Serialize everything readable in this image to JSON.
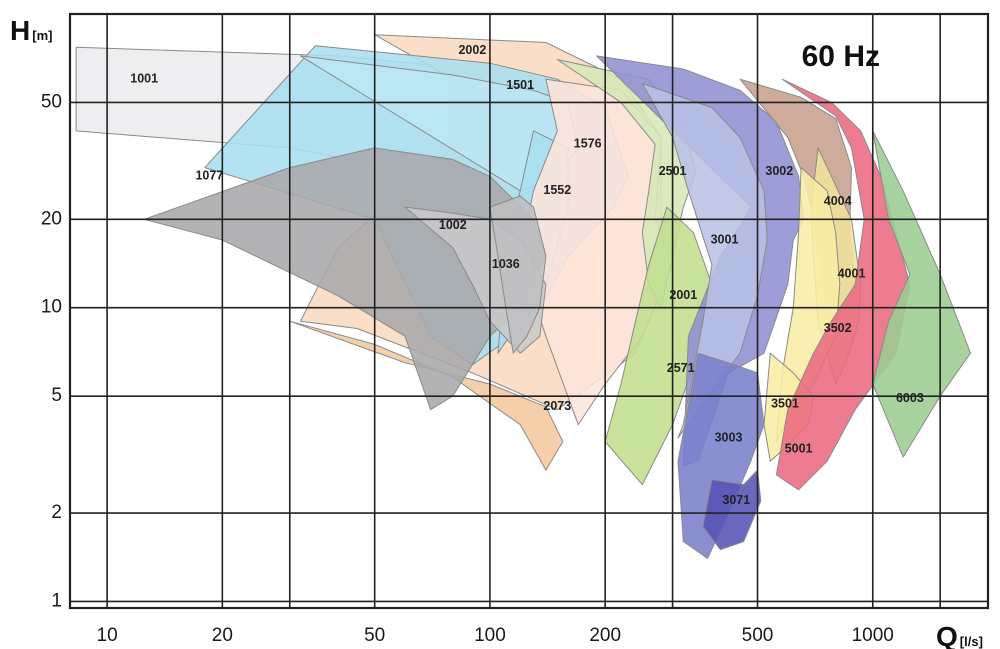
{
  "chart_data": {
    "type": "area",
    "title": "60 Hz",
    "xlabel": "Q",
    "xunit": "[l/s]",
    "ylabel": "H",
    "yunit": "[m]",
    "xscale": "log",
    "yscale": "log",
    "xlim": [
      8,
      2000
    ],
    "ylim": [
      0.95,
      100
    ],
    "xticks": [
      10,
      20,
      50,
      100,
      200,
      500,
      1000
    ],
    "yticks": [
      1,
      2,
      5,
      10,
      20,
      50
    ],
    "x_gridlines": [
      10,
      20,
      30,
      50,
      100,
      200,
      300,
      500,
      1000,
      1500
    ],
    "y_gridlines": [
      1,
      2,
      5,
      10,
      20,
      50
    ],
    "grid": true,
    "regions": [
      {
        "name": "1001",
        "color": "#ececef",
        "label_at": [
          12.5,
          60
        ],
        "polygon": [
          [
            8.3,
            77
          ],
          [
            40,
            72
          ],
          [
            90,
            65
          ],
          [
            140,
            37
          ],
          [
            120,
            30
          ],
          [
            85,
            22
          ],
          [
            55,
            30
          ],
          [
            30,
            35
          ],
          [
            8.3,
            40
          ]
        ]
      },
      {
        "name": "2002",
        "color": "#fad9bf",
        "label_at": [
          90,
          75
        ],
        "polygon": [
          [
            50,
            85
          ],
          [
            140,
            80
          ],
          [
            220,
            60
          ],
          [
            280,
            38
          ],
          [
            280,
            20
          ],
          [
            300,
            15
          ],
          [
            240,
            7
          ],
          [
            150,
            4.5
          ],
          [
            90,
            6
          ],
          [
            45,
            8.5
          ],
          [
            32,
            9
          ],
          [
            40,
            16
          ],
          [
            80,
            35
          ],
          [
            80,
            60
          ]
        ]
      },
      {
        "name": "2073",
        "color": "#f3c89e",
        "label_at": [
          150,
          4.6
        ],
        "polygon": [
          [
            30,
            9
          ],
          [
            60,
            6.5
          ],
          [
            100,
            5.5
          ],
          [
            140,
            4.6
          ],
          [
            155,
            3.5
          ],
          [
            140,
            2.8
          ],
          [
            120,
            4
          ],
          [
            80,
            5.8
          ],
          [
            50,
            7.5
          ]
        ]
      },
      {
        "name": "1576",
        "color": "#a8dff0",
        "label_at": [
          180,
          36
        ],
        "polygon": [
          [
            35,
            78
          ],
          [
            100,
            68
          ],
          [
            150,
            60
          ],
          [
            200,
            48
          ],
          [
            230,
            28
          ],
          [
            210,
            22
          ],
          [
            160,
            15
          ],
          [
            130,
            9
          ],
          [
            90,
            6.4
          ],
          [
            70,
            8
          ],
          [
            50,
            20
          ],
          [
            18,
            30
          ]
        ]
      },
      {
        "name": "1501",
        "color": "#bce6f3",
        "label_at": [
          120,
          57
        ],
        "polygon": [
          [
            32,
            72
          ],
          [
            80,
            62
          ],
          [
            130,
            55
          ],
          [
            160,
            50
          ],
          [
            170,
            35
          ],
          [
            150,
            28
          ],
          [
            120,
            25
          ]
        ]
      },
      {
        "name": "1552",
        "color": "#a8dff0",
        "label_at": [
          150,
          25
        ],
        "polygon": [
          [
            130,
            40
          ],
          [
            160,
            35
          ],
          [
            160,
            22
          ],
          [
            140,
            12
          ],
          [
            120,
            9
          ],
          [
            105,
            7
          ],
          [
            110,
            15
          ],
          [
            120,
            25
          ]
        ]
      },
      {
        "name": "2001",
        "color": "#fde5db",
        "label_at": [
          320,
          11
        ],
        "polygon": [
          [
            140,
            60
          ],
          [
            220,
            55
          ],
          [
            280,
            38
          ],
          [
            270,
            20
          ],
          [
            300,
            14
          ],
          [
            250,
            8
          ],
          [
            200,
            5.5
          ],
          [
            170,
            4
          ],
          [
            140,
            8
          ],
          [
            120,
            15
          ],
          [
            130,
            25
          ],
          [
            150,
            40
          ]
        ]
      },
      {
        "name": "2501",
        "color": "#d6e8b7",
        "label_at": [
          300,
          29
        ],
        "polygon": [
          [
            150,
            70
          ],
          [
            260,
            60
          ],
          [
            320,
            42
          ],
          [
            345,
            29
          ],
          [
            320,
            22
          ],
          [
            300,
            15
          ],
          [
            280,
            10
          ],
          [
            260,
            12
          ],
          [
            250,
            18
          ],
          [
            260,
            25
          ],
          [
            270,
            36
          ],
          [
            220,
            50
          ]
        ]
      },
      {
        "name": "2571",
        "color": "#c2df8f",
        "label_at": [
          315,
          6.2
        ],
        "polygon": [
          [
            290,
            22
          ],
          [
            340,
            18
          ],
          [
            380,
            12
          ],
          [
            350,
            7
          ],
          [
            300,
            4
          ],
          [
            250,
            2.5
          ],
          [
            200,
            3.5
          ],
          [
            220,
            5.5
          ],
          [
            240,
            9
          ],
          [
            260,
            14
          ]
        ]
      },
      {
        "name": "3002",
        "color": "#8f8fd3",
        "label_at": [
          570,
          29
        ],
        "polygon": [
          [
            190,
            72
          ],
          [
            320,
            65
          ],
          [
            450,
            55
          ],
          [
            560,
            43
          ],
          [
            640,
            28
          ],
          [
            660,
            20
          ],
          [
            620,
            17
          ],
          [
            600,
            12
          ],
          [
            520,
            7
          ],
          [
            420,
            6
          ],
          [
            350,
            3
          ],
          [
            320,
            2.9
          ],
          [
            330,
            8
          ],
          [
            400,
            15
          ],
          [
            450,
            19
          ],
          [
            480,
            22
          ]
        ]
      },
      {
        "name": "3001",
        "color": "#b9c2e6",
        "label_at": [
          410,
          17
        ],
        "polygon": [
          [
            250,
            58
          ],
          [
            380,
            48
          ],
          [
            450,
            38
          ],
          [
            520,
            25
          ],
          [
            530,
            17
          ],
          [
            500,
            11
          ],
          [
            450,
            7
          ],
          [
            400,
            5.7
          ],
          [
            350,
            4.5
          ],
          [
            310,
            3.6
          ],
          [
            320,
            4
          ],
          [
            360,
            9
          ],
          [
            380,
            14
          ],
          [
            330,
            25
          ],
          [
            300,
            38
          ]
        ]
      },
      {
        "name": "3003",
        "color": "#7a7fcc",
        "label_at": [
          420,
          3.6
        ],
        "polygon": [
          [
            350,
            7
          ],
          [
            420,
            6.5
          ],
          [
            500,
            6
          ],
          [
            520,
            4
          ],
          [
            480,
            3
          ],
          [
            420,
            2
          ],
          [
            370,
            1.4
          ],
          [
            320,
            1.6
          ],
          [
            310,
            3
          ]
        ]
      },
      {
        "name": "3071",
        "color": "#5553b5",
        "label_at": [
          440,
          2.2
        ],
        "polygon": [
          [
            380,
            2.6
          ],
          [
            460,
            2.5
          ],
          [
            500,
            2.8
          ],
          [
            510,
            2.2
          ],
          [
            460,
            1.6
          ],
          [
            400,
            1.5
          ],
          [
            360,
            1.8
          ]
        ]
      },
      {
        "name": "4004",
        "color": "#c89f8e",
        "label_at": [
          810,
          23
        ],
        "polygon": [
          [
            450,
            60
          ],
          [
            650,
            52
          ],
          [
            800,
            44
          ],
          [
            880,
            30
          ],
          [
            870,
            18
          ],
          [
            920,
            10
          ],
          [
            860,
            8
          ],
          [
            760,
            10
          ],
          [
            720,
            15
          ],
          [
            700,
            20
          ],
          [
            660,
            28
          ],
          [
            600,
            38
          ]
        ]
      },
      {
        "name": "4001",
        "color": "#f0e29c",
        "label_at": [
          880,
          13
        ],
        "polygon": [
          [
            720,
            35
          ],
          [
            880,
            20
          ],
          [
            930,
            12
          ],
          [
            920,
            9
          ],
          [
            850,
            6.5
          ],
          [
            800,
            5.5
          ],
          [
            720,
            9
          ],
          [
            700,
            15
          ],
          [
            690,
            22
          ]
        ]
      },
      {
        "name": "3502",
        "color": "#f8eda5",
        "label_at": [
          810,
          8.5
        ],
        "polygon": [
          [
            650,
            30
          ],
          [
            760,
            25
          ],
          [
            800,
            18
          ],
          [
            820,
            12
          ],
          [
            800,
            8
          ],
          [
            700,
            5.5
          ],
          [
            600,
            4.2
          ],
          [
            560,
            3.5
          ],
          [
            580,
            6
          ],
          [
            620,
            10
          ],
          [
            640,
            18
          ]
        ]
      },
      {
        "name": "3501",
        "color": "#f8eda5",
        "label_at": [
          590,
          4.7
        ],
        "polygon": [
          [
            540,
            7
          ],
          [
            620,
            6
          ],
          [
            700,
            5
          ],
          [
            680,
            4
          ],
          [
            600,
            3.4
          ],
          [
            540,
            3
          ],
          [
            520,
            4
          ]
        ]
      },
      {
        "name": "5001",
        "color": "#ec6a82",
        "label_at": [
          640,
          3.3
        ],
        "polygon": [
          [
            580,
            60
          ],
          [
            780,
            50
          ],
          [
            930,
            40
          ],
          [
            1050,
            28
          ],
          [
            1250,
            12
          ],
          [
            1150,
            7
          ],
          [
            900,
            4.5
          ],
          [
            760,
            3
          ],
          [
            640,
            2.4
          ],
          [
            560,
            2.7
          ],
          [
            600,
            4.5
          ],
          [
            700,
            7
          ],
          [
            780,
            9
          ],
          [
            900,
            12
          ],
          [
            950,
            20
          ],
          [
            880,
            35
          ],
          [
            800,
            45
          ]
        ]
      },
      {
        "name": "6003",
        "color": "#9ccd92",
        "label_at": [
          1250,
          4.9
        ],
        "polygon": [
          [
            1000,
            40
          ],
          [
            1200,
            25
          ],
          [
            1500,
            13
          ],
          [
            1800,
            7
          ],
          [
            1500,
            5
          ],
          [
            1200,
            3.1
          ],
          [
            1000,
            5.5
          ],
          [
            1100,
            9
          ],
          [
            1250,
            13
          ],
          [
            1100,
            20
          ]
        ]
      },
      {
        "name": "1077",
        "color": "#a9a9ab",
        "label_at": [
          18.5,
          28
        ],
        "polygon": [
          [
            12.5,
            20
          ],
          [
            30,
            30
          ],
          [
            50,
            35
          ],
          [
            80,
            32
          ],
          [
            100,
            28
          ],
          [
            130,
            20
          ],
          [
            140,
            15
          ],
          [
            120,
            10
          ],
          [
            100,
            8
          ],
          [
            80,
            5
          ],
          [
            70,
            4.5
          ],
          [
            60,
            8
          ],
          [
            40,
            11
          ],
          [
            20,
            17
          ]
        ]
      },
      {
        "name": "1002",
        "color": "#c9c9cb",
        "label_at": [
          80,
          19
        ],
        "polygon": [
          [
            60,
            22
          ],
          [
            80,
            21
          ],
          [
            100,
            20
          ],
          [
            120,
            17
          ],
          [
            140,
            12
          ],
          [
            135,
            8
          ],
          [
            120,
            7
          ],
          [
            100,
            9
          ],
          [
            90,
            12
          ],
          [
            80,
            16
          ]
        ]
      },
      {
        "name": "1036",
        "color": "#bfbfc1",
        "label_at": [
          110,
          14
        ],
        "polygon": [
          [
            100,
            22
          ],
          [
            120,
            24
          ],
          [
            130,
            22
          ],
          [
            140,
            15
          ],
          [
            135,
            10
          ],
          [
            125,
            8
          ],
          [
            115,
            7
          ],
          [
            110,
            10
          ],
          [
            105,
            15
          ]
        ]
      }
    ],
    "colors": {
      "grid": "#222222",
      "background": "#ffffff"
    }
  }
}
